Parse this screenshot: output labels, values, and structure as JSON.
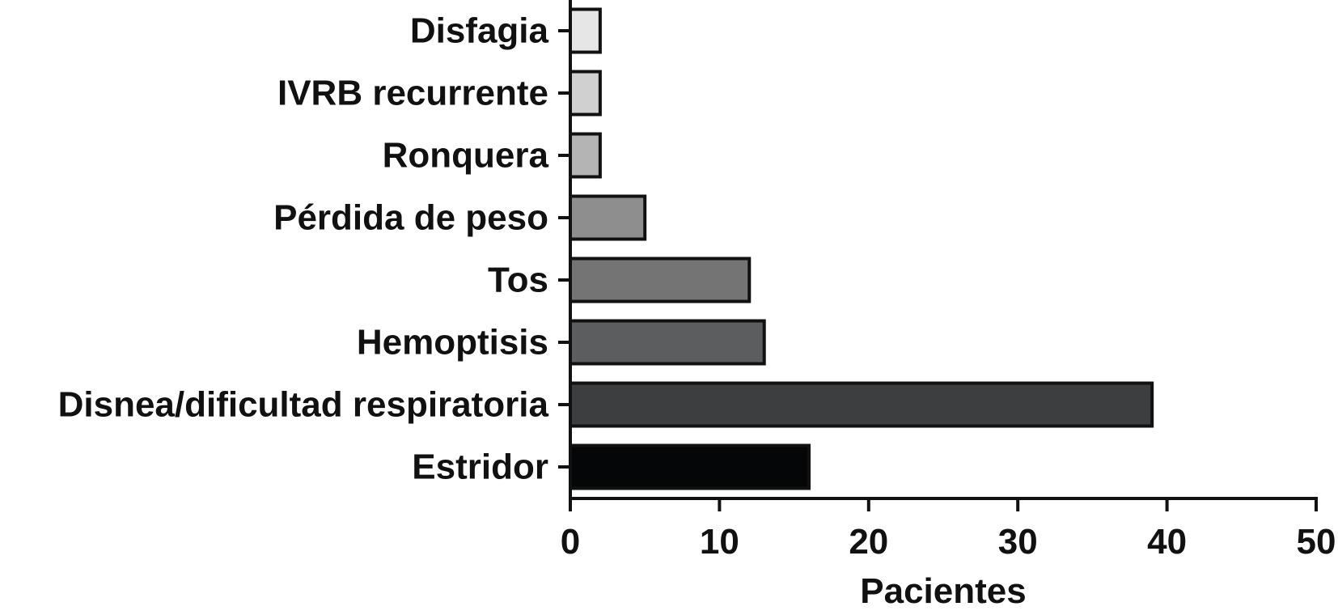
{
  "chart_data": {
    "type": "bar",
    "orientation": "horizontal",
    "categories": [
      "Disfagia",
      "IVRB recurrente",
      "Ronquera",
      "Pérdida de peso",
      "Tos",
      "Hemoptisis",
      "Disnea/dificultad respiratoria",
      "Estridor"
    ],
    "values": [
      2,
      2,
      2,
      5,
      12,
      13,
      39,
      16
    ],
    "bar_colors": [
      "#e6e6e6",
      "#d0d0d0",
      "#b4b4b4",
      "#8e8e8e",
      "#747474",
      "#5c5d5e",
      "#3c3e40",
      "#050608"
    ],
    "xlabel": "Pacientes",
    "ylabel": "",
    "xlim": [
      0,
      50
    ],
    "xticks": [
      "0",
      "10",
      "20",
      "30",
      "40",
      "50"
    ],
    "grid": false,
    "legend": "none"
  }
}
